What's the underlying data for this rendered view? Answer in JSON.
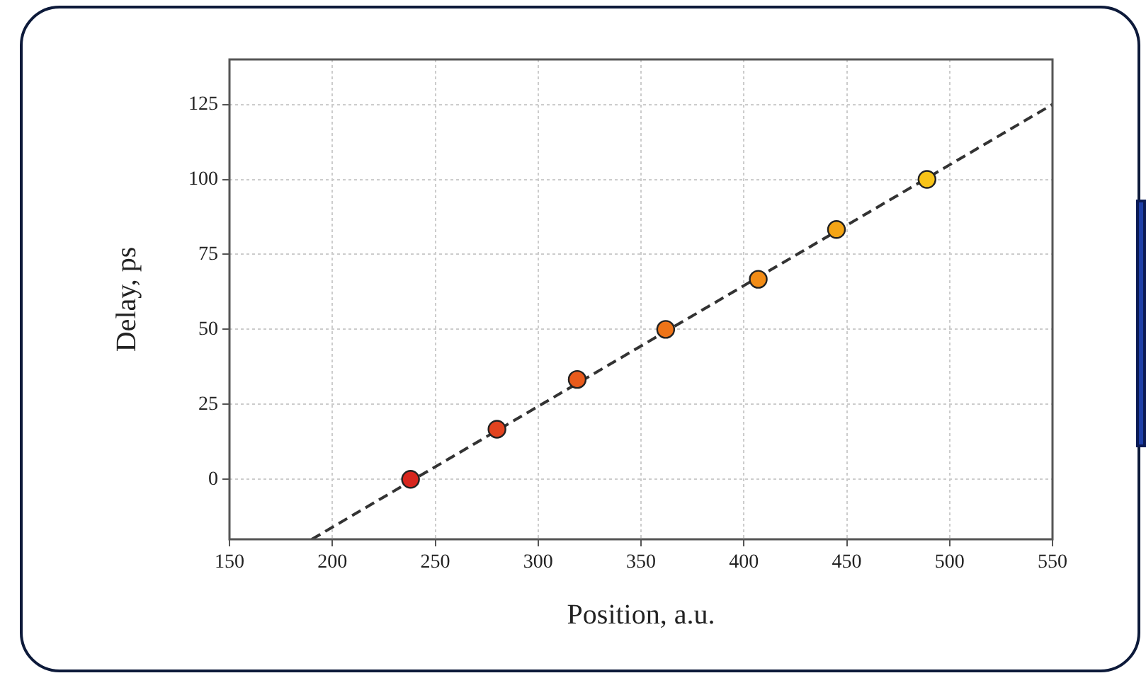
{
  "chart_data": {
    "type": "scatter",
    "xlabel": "Position, a.u.",
    "ylabel": "Delay, ps",
    "xlim": [
      150,
      550
    ],
    "ylim": [
      -20,
      140
    ],
    "xticks": [
      150,
      200,
      250,
      300,
      350,
      400,
      450,
      500,
      550
    ],
    "yticks": [
      0,
      25,
      50,
      75,
      100,
      125
    ],
    "grid": true,
    "series": [
      {
        "type": "line",
        "x": [
          190,
          550
        ],
        "values": [
          -20,
          125
        ],
        "color": "#333333",
        "line_style": "dashed",
        "marker": "none"
      },
      {
        "type": "scatter",
        "x": [
          238,
          280,
          319,
          362,
          407,
          445,
          489
        ],
        "values": [
          0,
          16.7,
          33.3,
          50,
          66.7,
          83.3,
          100
        ],
        "colors": [
          "#d7261e",
          "#e2431f",
          "#e95b1c",
          "#ee7418",
          "#f28c16",
          "#f5a515",
          "#f8c317"
        ],
        "marker": "circle"
      }
    ]
  }
}
